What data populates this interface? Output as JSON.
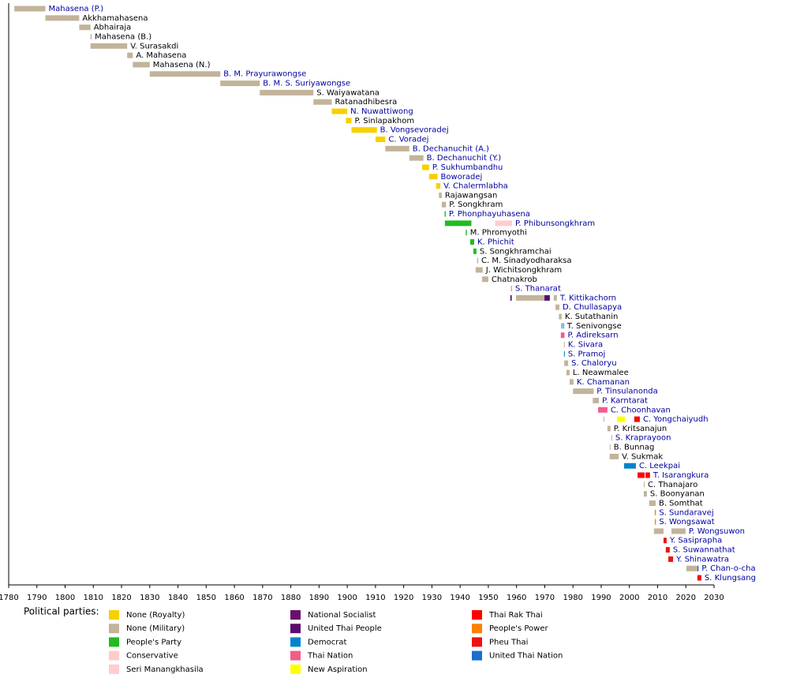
{
  "chart_data": {
    "type": "timeline",
    "xlim": [
      1780,
      2030
    ],
    "xticks": [
      1780,
      1790,
      1800,
      1810,
      1820,
      1830,
      1840,
      1850,
      1860,
      1870,
      1880,
      1890,
      1900,
      1910,
      1920,
      1930,
      1940,
      1950,
      1960,
      1970,
      1980,
      1990,
      2000,
      2010,
      2020,
      2030
    ],
    "legend_title": "Political parties:",
    "parties": [
      {
        "name": "None (Royalty)",
        "color": "#f7d000"
      },
      {
        "name": "None (Military)",
        "color": "#c2b49a"
      },
      {
        "name": "People's Party",
        "color": "#22bb22"
      },
      {
        "name": "Conservative",
        "color": "#ffcccc"
      },
      {
        "name": "Seri Manangkhasila",
        "color": "#ffccd0"
      },
      {
        "name": "National Socialist",
        "color": "#6b0f6b"
      },
      {
        "name": "United Thai People",
        "color": "#5c0b6e"
      },
      {
        "name": "Democrat",
        "color": "#0084cc"
      },
      {
        "name": "Thai Nation",
        "color": "#f25c8a"
      },
      {
        "name": "New Aspiration",
        "color": "#ffff00"
      },
      {
        "name": "Thai Rak Thai",
        "color": "#ff0000"
      },
      {
        "name": "People's Power",
        "color": "#ff8000"
      },
      {
        "name": "Pheu Thai",
        "color": "#ee1111"
      },
      {
        "name": "United Thai Nation",
        "color": "#1a6fcc"
      }
    ],
    "rows": [
      {
        "name": "Mahasena (P.)",
        "label_color": "#0000a0",
        "segments": [
          {
            "start": 1782,
            "end": 1793,
            "party": 1
          }
        ]
      },
      {
        "name": "Akkhamahasena",
        "label_color": "#000000",
        "segments": [
          {
            "start": 1793,
            "end": 1805,
            "party": 1
          }
        ]
      },
      {
        "name": "Abhairaja",
        "label_color": "#000000",
        "segments": [
          {
            "start": 1805,
            "end": 1809,
            "party": 1
          }
        ]
      },
      {
        "name": "Mahasena (B.)",
        "label_color": "#000000",
        "segments": [
          {
            "start": 1809,
            "end": 1809.4,
            "party": 1
          }
        ]
      },
      {
        "name": "V. Surasakdi",
        "label_color": "#000000",
        "segments": [
          {
            "start": 1809,
            "end": 1822,
            "party": 1
          }
        ]
      },
      {
        "name": "A. Mahasena",
        "label_color": "#000000",
        "segments": [
          {
            "start": 1822,
            "end": 1824,
            "party": 1
          }
        ]
      },
      {
        "name": "Mahasena (N.)",
        "label_color": "#000000",
        "segments": [
          {
            "start": 1824,
            "end": 1830,
            "party": 1
          }
        ]
      },
      {
        "name": "B. M. Prayurawongse",
        "label_color": "#0000a0",
        "segments": [
          {
            "start": 1830,
            "end": 1855,
            "party": 1
          }
        ]
      },
      {
        "name": "B. M. S. Suriyawongse",
        "label_color": "#0000a0",
        "segments": [
          {
            "start": 1855,
            "end": 1869,
            "party": 1
          }
        ]
      },
      {
        "name": "S. Waiyawatana",
        "label_color": "#000000",
        "segments": [
          {
            "start": 1869,
            "end": 1888,
            "party": 1
          }
        ]
      },
      {
        "name": "Ratanadhibesra",
        "label_color": "#000000",
        "segments": [
          {
            "start": 1888,
            "end": 1894.5,
            "party": 1
          }
        ]
      },
      {
        "name": "N. Nuwattiwong",
        "label_color": "#0000a0",
        "segments": [
          {
            "start": 1894.5,
            "end": 1900,
            "party": 0
          }
        ]
      },
      {
        "name": "P. Sinlapakhom",
        "label_color": "#000000",
        "segments": [
          {
            "start": 1899.5,
            "end": 1901.5,
            "party": 0
          }
        ]
      },
      {
        "name": "B. Vongsevoradej",
        "label_color": "#0000a0",
        "segments": [
          {
            "start": 1901.5,
            "end": 1910.5,
            "party": 0
          }
        ]
      },
      {
        "name": "C. Voradej",
        "label_color": "#0000a0",
        "segments": [
          {
            "start": 1910,
            "end": 1913.5,
            "party": 0
          }
        ]
      },
      {
        "name": "B. Dechanuchit (A.)",
        "label_color": "#0000a0",
        "segments": [
          {
            "start": 1913.5,
            "end": 1922,
            "party": 1
          }
        ]
      },
      {
        "name": "B. Dechanuchit (Y.)",
        "label_color": "#0000a0",
        "segments": [
          {
            "start": 1922,
            "end": 1927,
            "party": 1
          }
        ]
      },
      {
        "name": "P. Sukhumbandhu",
        "label_color": "#0000a0",
        "segments": [
          {
            "start": 1926.5,
            "end": 1929,
            "party": 0
          }
        ]
      },
      {
        "name": "Boworadej",
        "label_color": "#0000a0",
        "segments": [
          {
            "start": 1929,
            "end": 1932,
            "party": 0
          }
        ]
      },
      {
        "name": "V. Chalermlabha",
        "label_color": "#0000a0",
        "segments": [
          {
            "start": 1931.5,
            "end": 1933,
            "party": 0
          }
        ]
      },
      {
        "name": "Rajawangsan",
        "label_color": "#000000",
        "segments": [
          {
            "start": 1932.5,
            "end": 1933.5,
            "party": 1
          }
        ]
      },
      {
        "name": "P. Songkhram",
        "label_color": "#000000",
        "segments": [
          {
            "start": 1933.5,
            "end": 1935,
            "party": 1
          }
        ]
      },
      {
        "name": "P. Phonphayuhasena",
        "label_color": "#0000a0",
        "segments": [
          {
            "start": 1934.5,
            "end": 1934.9,
            "party": 2
          }
        ]
      },
      {
        "name": "P. Phibunsongkhram",
        "label_color": "#0000a0",
        "segments": [
          {
            "start": 1934.6,
            "end": 1944,
            "party": 2
          },
          {
            "start": 1952.4,
            "end": 1958.4,
            "party": 4
          }
        ]
      },
      {
        "name": "M. Phromyothi",
        "label_color": "#000000",
        "segments": [
          {
            "start": 1942,
            "end": 1942.4,
            "party": 2
          }
        ]
      },
      {
        "name": "K. Phichit",
        "label_color": "#0000a0",
        "segments": [
          {
            "start": 1943.6,
            "end": 1945,
            "party": 2
          }
        ]
      },
      {
        "name": "S. Songkhramchai",
        "label_color": "#000000",
        "segments": [
          {
            "start": 1944.7,
            "end": 1945.8,
            "party": 2
          }
        ]
      },
      {
        "name": "C. M. Sinadyodharaksa",
        "label_color": "#000000",
        "segments": [
          {
            "start": 1946,
            "end": 1946.4,
            "party": 1
          }
        ]
      },
      {
        "name": "J. Wichitsongkhram",
        "label_color": "#000000",
        "segments": [
          {
            "start": 1945.5,
            "end": 1948,
            "party": 1
          }
        ]
      },
      {
        "name": "Chatnakrob",
        "label_color": "#000000",
        "segments": [
          {
            "start": 1947.8,
            "end": 1950,
            "party": 1
          }
        ]
      },
      {
        "name": "S. Thanarat",
        "label_color": "#0000a0",
        "segments": [
          {
            "start": 1958,
            "end": 1958.4,
            "party": 1
          }
        ]
      },
      {
        "name": "T. Kittikachorn",
        "label_color": "#0000a0",
        "segments": [
          {
            "start": 1957.8,
            "end": 1958.3,
            "party": 6
          },
          {
            "start": 1959.8,
            "end": 1969.9,
            "party": 1
          },
          {
            "start": 1969.9,
            "end": 1971.8,
            "party": 6
          },
          {
            "start": 1973.2,
            "end": 1974.3,
            "party": 1
          }
        ]
      },
      {
        "name": "D. Chullasapya",
        "label_color": "#0000a0",
        "segments": [
          {
            "start": 1973.8,
            "end": 1975.2,
            "party": 1
          }
        ]
      },
      {
        "name": "K. Sutathanin",
        "label_color": "#000000",
        "segments": [
          {
            "start": 1975,
            "end": 1976,
            "party": 1
          }
        ]
      },
      {
        "name": "T. Senivongse",
        "label_color": "#000000",
        "segments": [
          {
            "start": 1975.9,
            "end": 1976.2,
            "party": 7
          },
          {
            "start": 1976.5,
            "end": 1976.8,
            "party": 7
          }
        ]
      },
      {
        "name": "P. Adireksarn",
        "label_color": "#0000a0",
        "segments": [
          {
            "start": 1975.7,
            "end": 1977,
            "party": 8
          }
        ]
      },
      {
        "name": "K. Sivara",
        "label_color": "#0000a0",
        "segments": [
          {
            "start": 1976.8,
            "end": 1977.1,
            "party": 1
          }
        ]
      },
      {
        "name": "S. Pramoj",
        "label_color": "#0000a0",
        "segments": [
          {
            "start": 1976.8,
            "end": 1977.1,
            "party": 7
          }
        ]
      },
      {
        "name": "S. Chaloryu",
        "label_color": "#0000a0",
        "segments": [
          {
            "start": 1976.9,
            "end": 1978.3,
            "party": 1
          }
        ]
      },
      {
        "name": "L. Neawmalee",
        "label_color": "#000000",
        "segments": [
          {
            "start": 1977.7,
            "end": 1978.8,
            "party": 1
          }
        ]
      },
      {
        "name": "K. Chamanan",
        "label_color": "#0000a0",
        "segments": [
          {
            "start": 1978.8,
            "end": 1980.2,
            "party": 1
          }
        ]
      },
      {
        "name": "P. Tinsulanonda",
        "label_color": "#0000a0",
        "segments": [
          {
            "start": 1980,
            "end": 1987.3,
            "party": 1
          }
        ]
      },
      {
        "name": "P. Karntarat",
        "label_color": "#0000a0",
        "segments": [
          {
            "start": 1987,
            "end": 1989.2,
            "party": 1
          }
        ]
      },
      {
        "name": "C. Choonhavan",
        "label_color": "#0000a0",
        "segments": [
          {
            "start": 1988.9,
            "end": 1992.2,
            "party": 8
          }
        ]
      },
      {
        "name": "C. Yongchaiyudh",
        "label_color": "#0000a0",
        "segments": [
          {
            "start": 1990.8,
            "end": 1991.1,
            "party": 1
          },
          {
            "start": 1995.6,
            "end": 1998.4,
            "party": 9
          },
          {
            "start": 2001.7,
            "end": 2003.7,
            "party": 10
          }
        ]
      },
      {
        "name": "P. Kritsanajun",
        "label_color": "#000000",
        "segments": [
          {
            "start": 1992.2,
            "end": 1993.3,
            "party": 1
          }
        ]
      },
      {
        "name": "S. Kraprayoon",
        "label_color": "#0000a0",
        "segments": [
          {
            "start": 1993.6,
            "end": 1993.9,
            "party": 1
          }
        ]
      },
      {
        "name": "B. Bunnag",
        "label_color": "#000000",
        "segments": [
          {
            "start": 1993,
            "end": 1993.3,
            "party": 1
          }
        ]
      },
      {
        "name": "V. Sukmak",
        "label_color": "#000000",
        "segments": [
          {
            "start": 1993,
            "end": 1996.2,
            "party": 1
          }
        ]
      },
      {
        "name": "C. Leekpai",
        "label_color": "#0000a0",
        "segments": [
          {
            "start": 1998.1,
            "end": 2002.3,
            "party": 7
          }
        ]
      },
      {
        "name": "T. Isarangkura",
        "label_color": "#0000a0",
        "segments": [
          {
            "start": 2002.9,
            "end": 2005.4,
            "party": 10
          },
          {
            "start": 2005.7,
            "end": 2007.3,
            "party": 10
          }
        ]
      },
      {
        "name": "C. Thanajaro",
        "label_color": "#000000",
        "segments": [
          {
            "start": 2005.1,
            "end": 2005.4,
            "party": 1
          }
        ]
      },
      {
        "name": "S. Boonyanan",
        "label_color": "#000000",
        "segments": [
          {
            "start": 2005.1,
            "end": 2006.2,
            "party": 1
          }
        ]
      },
      {
        "name": "B. Somthat",
        "label_color": "#000000",
        "segments": [
          {
            "start": 2007,
            "end": 2009.3,
            "party": 1
          }
        ]
      },
      {
        "name": "S. Sundaravej",
        "label_color": "#0000a0",
        "segments": [
          {
            "start": 2009,
            "end": 2009.4,
            "party": 11
          }
        ]
      },
      {
        "name": "S. Wongsawat",
        "label_color": "#0000a0",
        "segments": [
          {
            "start": 2009,
            "end": 2009.4,
            "party": 11
          }
        ]
      },
      {
        "name": "P. Wongsuwon",
        "label_color": "#0000a0",
        "segments": [
          {
            "start": 2008.7,
            "end": 2012.1,
            "party": 1
          },
          {
            "start": 2014.9,
            "end": 2019.9,
            "party": 1
          }
        ]
      },
      {
        "name": "Y. Sasiprapha",
        "label_color": "#0000a0",
        "segments": [
          {
            "start": 2012.1,
            "end": 2013.2,
            "party": 12
          }
        ]
      },
      {
        "name": "S. Suwannathat",
        "label_color": "#0000a0",
        "segments": [
          {
            "start": 2012.9,
            "end": 2014.3,
            "party": 12
          }
        ]
      },
      {
        "name": "Y. Shinawatra",
        "label_color": "#0000a0",
        "segments": [
          {
            "start": 2013.8,
            "end": 2015.5,
            "party": 12
          }
        ]
      },
      {
        "name": "P. Chan-o-cha",
        "label_color": "#0000a0",
        "segments": [
          {
            "start": 2020.2,
            "end": 2024.1,
            "party": 1
          },
          {
            "start": 2024.1,
            "end": 2024.5,
            "party": 13
          }
        ]
      },
      {
        "name": "S. Klungsang",
        "label_color": "#0000a0",
        "segments": [
          {
            "start": 2024.1,
            "end": 2025.5,
            "party": 12
          }
        ]
      }
    ]
  }
}
